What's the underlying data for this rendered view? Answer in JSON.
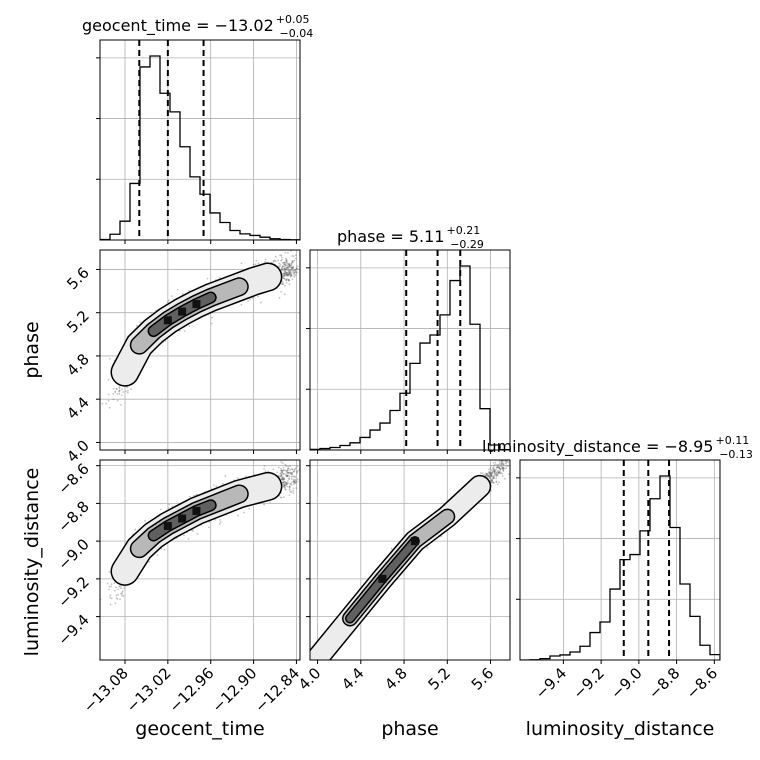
{
  "chart_data": {
    "type": "corner",
    "parameters": [
      "geocent_time",
      "phase",
      "luminosity_distance"
    ],
    "grid": true,
    "titles": [
      {
        "parameter": "geocent_time",
        "label": "geocent_time = −13.02",
        "upper": "+0.05",
        "lower": "−0.04"
      },
      {
        "parameter": "phase",
        "label": "phase = 5.11",
        "upper": "+0.21",
        "lower": "−0.29"
      },
      {
        "parameter": "luminosity_distance",
        "label": "luminosity_distance = −8.95",
        "upper": "+0.11",
        "lower": "−0.13"
      }
    ],
    "axes": {
      "geocent_time": {
        "range": [
          -13.115,
          -12.835
        ],
        "ticks": [
          -13.08,
          -13.02,
          -12.96,
          -12.9,
          -12.84
        ],
        "tick_labels": [
          "−13.08",
          "−13.02",
          "−12.96",
          "−12.90",
          "−12.84"
        ]
      },
      "phase": {
        "range": [
          3.93,
          5.78
        ],
        "ticks": [
          4.0,
          4.4,
          4.8,
          5.2,
          5.6
        ],
        "tick_labels": [
          "4.0",
          "4.4",
          "4.8",
          "5.2",
          "5.6"
        ]
      },
      "luminosity_distance": {
        "range": [
          -9.63,
          -8.57
        ],
        "ticks": [
          -9.4,
          -9.2,
          -9.0,
          -8.8,
          -8.6
        ],
        "tick_labels": [
          "−9.4",
          "−9.2",
          "−9.0",
          "−8.8",
          "−8.6"
        ]
      }
    },
    "quantiles": {
      "geocent_time": [
        -13.06,
        -13.02,
        -12.97
      ],
      "phase": [
        4.82,
        5.11,
        5.32
      ],
      "luminosity_distance": [
        -9.08,
        -8.95,
        -8.84
      ]
    },
    "histograms": {
      "geocent_time": {
        "edges": [
          -13.115,
          -13.101,
          -13.087,
          -13.073,
          -13.059,
          -13.045,
          -13.031,
          -13.017,
          -13.003,
          -12.989,
          -12.975,
          -12.961,
          -12.947,
          -12.933,
          -12.919,
          -12.905,
          -12.891,
          -12.877,
          -12.863,
          -12.849,
          -12.835
        ],
        "counts": [
          4,
          45,
          148,
          445,
          1362,
          1448,
          1155,
          1008,
          734,
          497,
          360,
          213,
          138,
          75,
          48,
          36,
          22,
          10,
          4,
          2
        ]
      },
      "phase": {
        "edges": [
          3.93,
          4.0225,
          4.115,
          4.2075,
          4.3,
          4.3925,
          4.485,
          4.5775,
          4.67,
          4.7625,
          4.855,
          4.9475,
          5.04,
          5.1325,
          5.225,
          5.3175,
          5.41,
          5.5025,
          5.595,
          5.6875,
          5.78
        ],
        "counts": [
          3,
          8,
          14,
          25,
          40,
          70,
          111,
          150,
          220,
          316,
          482,
          595,
          640,
          752,
          943,
          1024,
          700,
          230,
          28,
          2
        ]
      },
      "luminosity_distance": {
        "edges": [
          -9.63,
          -9.577,
          -9.524,
          -9.471,
          -9.418,
          -9.365,
          -9.312,
          -9.259,
          -9.206,
          -9.153,
          -9.1,
          -9.047,
          -8.994,
          -8.941,
          -8.888,
          -8.835,
          -8.782,
          -8.729,
          -8.676,
          -8.623,
          -8.57
        ],
        "counts": [
          0,
          2,
          10,
          30,
          38,
          60,
          103,
          205,
          284,
          530,
          750,
          788,
          965,
          1205,
          1375,
          990,
          568,
          326,
          110,
          40
        ]
      }
    },
    "scatter_2d": [
      {
        "x": "geocent_time",
        "y": "phase",
        "ridge_x": [
          -13.095,
          -13.08,
          -13.06,
          -13.04,
          -13.02,
          -13.0,
          -12.98,
          -12.96,
          -12.94,
          -12.92,
          -12.9,
          -12.88,
          -12.86,
          -12.845
        ],
        "ridge_y": [
          4.4,
          4.65,
          4.9,
          5.03,
          5.13,
          5.21,
          5.28,
          5.34,
          5.39,
          5.44,
          5.49,
          5.53,
          5.58,
          5.62
        ]
      },
      {
        "x": "geocent_time",
        "y": "luminosity_distance",
        "ridge_x": [
          -13.095,
          -13.08,
          -13.06,
          -13.04,
          -13.02,
          -13.0,
          -12.98,
          -12.96,
          -12.94,
          -12.92,
          -12.9,
          -12.88,
          -12.86,
          -12.845
        ],
        "ridge_y": [
          -9.3,
          -9.16,
          -9.04,
          -8.97,
          -8.92,
          -8.88,
          -8.84,
          -8.81,
          -8.78,
          -8.75,
          -8.73,
          -8.71,
          -8.68,
          -8.66
        ]
      },
      {
        "x": "phase",
        "y": "luminosity_distance",
        "ridge_x": [
          4.0,
          4.3,
          4.6,
          4.9,
          5.2,
          5.5,
          5.75
        ],
        "ridge_y": [
          -9.62,
          -9.41,
          -9.2,
          -9.0,
          -8.87,
          -8.71,
          -8.58
        ]
      }
    ]
  }
}
